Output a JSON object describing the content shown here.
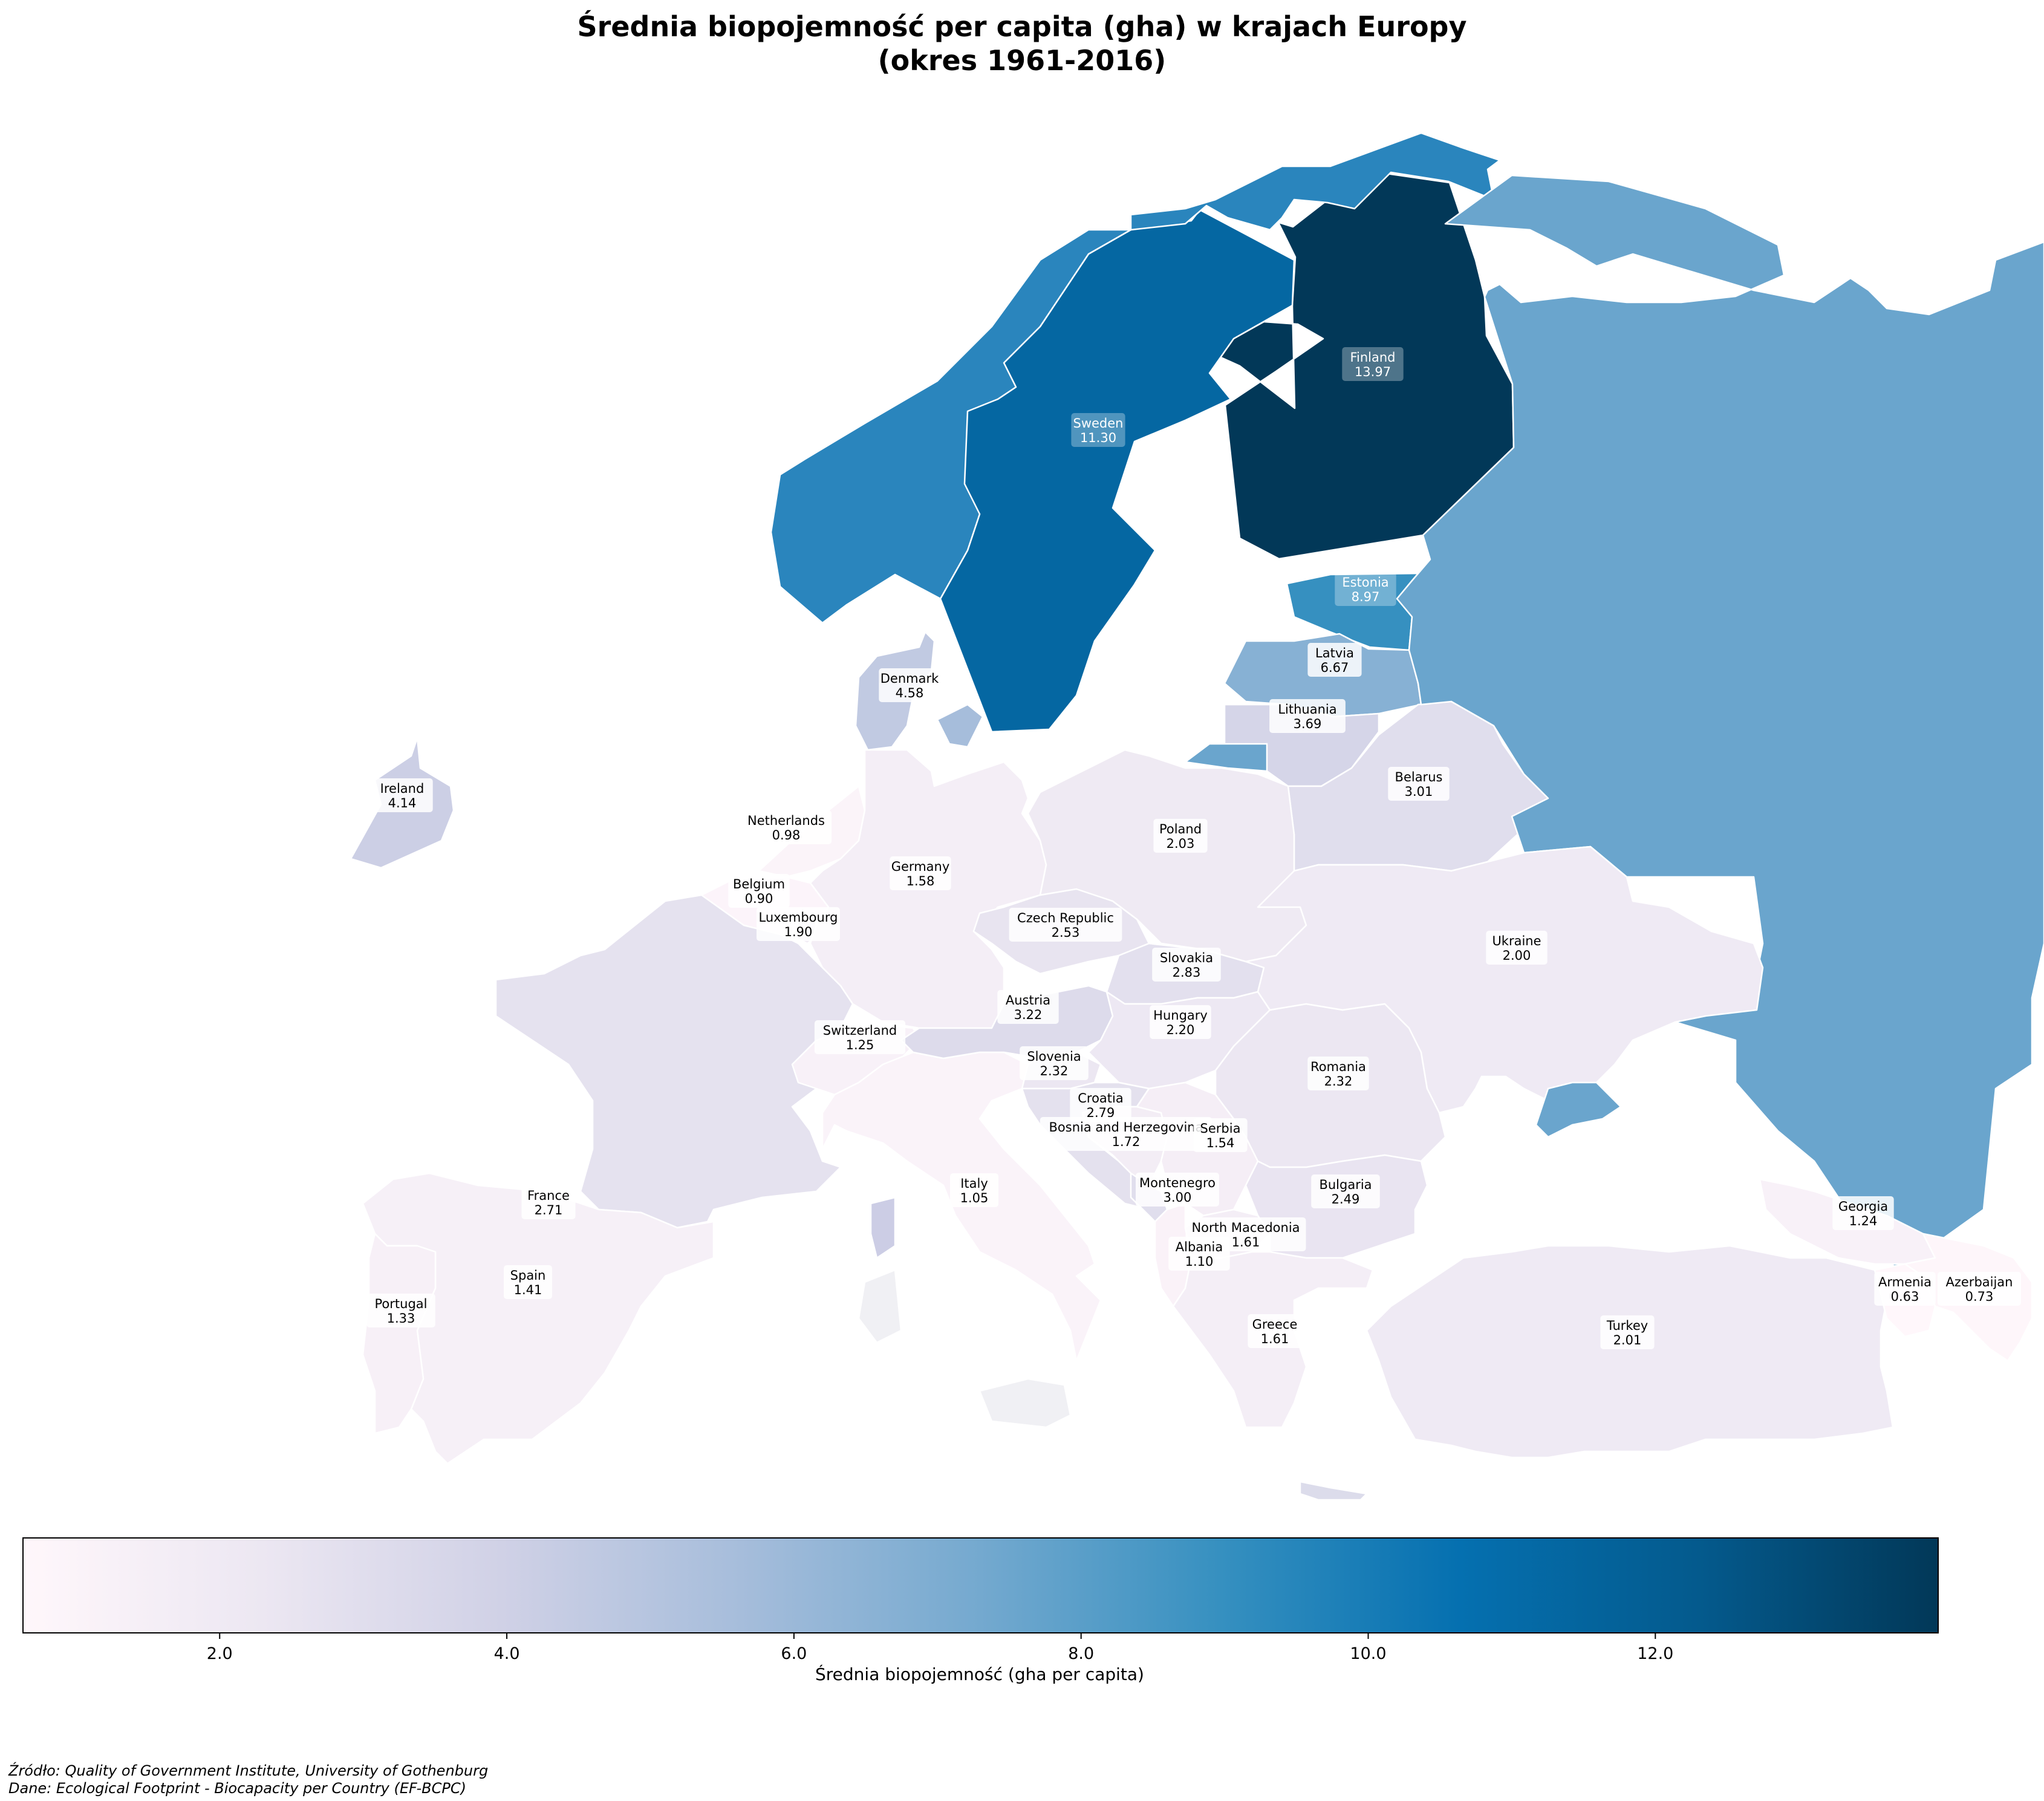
{
  "title_line1": "Średnia biopojemność per capita (gha) w krajach Europy",
  "title_line2": "(okres 1961-2016)",
  "colorbar": {
    "label": "Średnia biopojemność (gha per capita)",
    "min": 0.63,
    "max": 13.97,
    "ticks": [
      "2.0",
      "4.0",
      "6.0",
      "8.0",
      "10.0",
      "12.0"
    ],
    "tick_values": [
      2,
      4,
      6,
      8,
      10,
      12
    ],
    "colormap": "PuBu",
    "colors": [
      "#f5f4f5",
      "#e8e7f1",
      "#d0d1e6",
      "#a6bddb",
      "#74a9cf",
      "#3690c0",
      "#0570b0",
      "#045a8d",
      "#023858"
    ]
  },
  "footer": {
    "source": "Źródło: Quality of Government Institute, University of Gothenburg",
    "data": "Dane: Ecological Footprint - Biocapacity per Country (EF-BCPC)"
  },
  "chart_data": {
    "type": "choropleth",
    "title": "Średnia biopojemność per capita (gha) w krajach Europy (okres 1961-2016)",
    "value_label": "Średnia biopojemność (gha per capita)",
    "countries": [
      {
        "name": "Finland",
        "value": "13.97"
      },
      {
        "name": "Sweden",
        "value": "11.30"
      },
      {
        "name": "Estonia",
        "value": "8.97"
      },
      {
        "name": "Latvia",
        "value": "6.67"
      },
      {
        "name": "Denmark",
        "value": "4.58"
      },
      {
        "name": "Ireland",
        "value": "4.14"
      },
      {
        "name": "Lithuania",
        "value": "3.69"
      },
      {
        "name": "Austria",
        "value": "3.22"
      },
      {
        "name": "Belarus",
        "value": "3.01"
      },
      {
        "name": "Montenegro",
        "value": "3.00"
      },
      {
        "name": "Slovakia",
        "value": "2.83"
      },
      {
        "name": "Croatia",
        "value": "2.79"
      },
      {
        "name": "France",
        "value": "2.71"
      },
      {
        "name": "Czech Republic",
        "value": "2.53"
      },
      {
        "name": "Bulgaria",
        "value": "2.49"
      },
      {
        "name": "Slovenia",
        "value": "2.32"
      },
      {
        "name": "Romania",
        "value": "2.32"
      },
      {
        "name": "Hungary",
        "value": "2.20"
      },
      {
        "name": "Poland",
        "value": "2.03"
      },
      {
        "name": "Turkey",
        "value": "2.01"
      },
      {
        "name": "Ukraine",
        "value": "2.00"
      },
      {
        "name": "Luxembourg",
        "value": "1.90"
      },
      {
        "name": "Bosnia and Herzegovina",
        "value": "1.72"
      },
      {
        "name": "North Macedonia",
        "value": "1.61"
      },
      {
        "name": "Greece",
        "value": "1.61"
      },
      {
        "name": "Germany",
        "value": "1.58"
      },
      {
        "name": "Serbia",
        "value": "1.54"
      },
      {
        "name": "Spain",
        "value": "1.41"
      },
      {
        "name": "Portugal",
        "value": "1.33"
      },
      {
        "name": "Switzerland",
        "value": "1.25"
      },
      {
        "name": "Georgia",
        "value": "1.24"
      },
      {
        "name": "Albania",
        "value": "1.10"
      },
      {
        "name": "Italy",
        "value": "1.05"
      },
      {
        "name": "Netherlands",
        "value": "0.98"
      },
      {
        "name": "Belgium",
        "value": "0.90"
      },
      {
        "name": "Azerbaijan",
        "value": "0.73"
      },
      {
        "name": "Armenia",
        "value": "0.63"
      }
    ]
  }
}
